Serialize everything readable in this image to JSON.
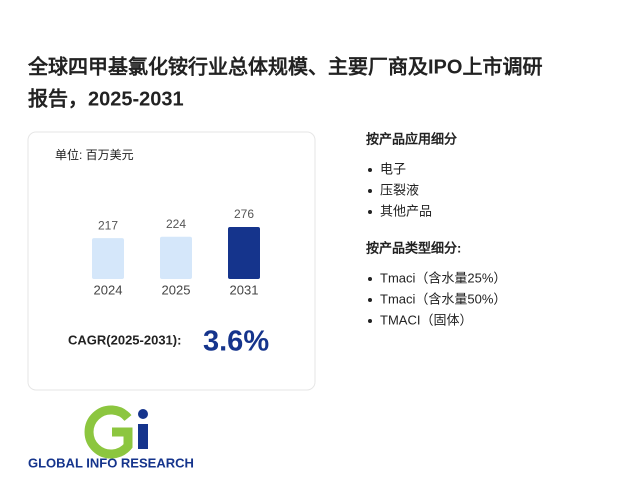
{
  "title_lines": [
    "全球四甲基氯化铵行业总体规模、主要厂商及IPO上市调研",
    "报告，2025-2031"
  ],
  "chart_data": {
    "type": "bar",
    "unit_label": "单位: 百万美元",
    "categories": [
      "2024",
      "2025",
      "2031"
    ],
    "values": [
      217,
      224,
      276
    ],
    "colors": [
      "#d5e7fa",
      "#d5e7fa",
      "#15348c"
    ]
  },
  "cagr": {
    "label": "CAGR(2025-2031):",
    "value": "3.6%"
  },
  "segments": [
    {
      "heading": "按产品应用细分",
      "items": [
        "电子",
        "压裂液",
        "其他产品"
      ]
    },
    {
      "heading": "按产品类型细分:",
      "items": [
        "Tmaci（含水量25%）",
        "Tmaci（含水量50%）",
        "TMACI（固体）"
      ]
    }
  ],
  "logo_text": "GLOBAL INFO RESEARCH"
}
